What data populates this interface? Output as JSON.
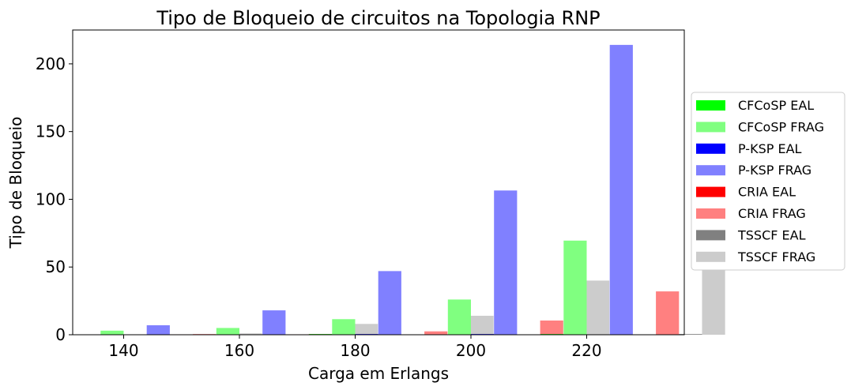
{
  "chart_data": {
    "type": "bar",
    "title": "Tipo de Bloqueio de circuitos na Topologia RNP",
    "xlabel": "Carga em Erlangs",
    "ylabel": "Tipo de Bloqueio",
    "categories": [
      "140",
      "160",
      "180",
      "200",
      "220"
    ],
    "yticks": [
      0,
      50,
      100,
      150,
      200
    ],
    "ylim": [
      0,
      225
    ],
    "legend_position": "right",
    "grid": false,
    "series": [
      {
        "name": "CFCoSP EAL",
        "color": "#00ff00",
        "values": [
          0,
          0,
          0.5,
          0,
          0.5
        ]
      },
      {
        "name": "CFCoSP FRAG",
        "color": "#80ff80",
        "values": [
          3,
          5,
          11.5,
          26,
          69.5
        ]
      },
      {
        "name": "P-KSP EAL",
        "color": "#0000ff",
        "values": [
          0,
          0,
          0.5,
          0.5,
          0
        ]
      },
      {
        "name": "P-KSP FRAG",
        "color": "#8080ff",
        "values": [
          7,
          18,
          47,
          106.5,
          214
        ]
      },
      {
        "name": "CRIA EAL",
        "color": "#ff0000",
        "values": [
          0.3,
          0.3,
          0,
          0,
          0
        ]
      },
      {
        "name": "CRIA FRAG",
        "color": "#ff8080",
        "values": [
          0.5,
          0.5,
          2.5,
          10.5,
          32
        ]
      },
      {
        "name": "TSSCF EAL",
        "color": "#808080",
        "values": [
          0,
          0,
          0,
          0,
          0.5
        ]
      },
      {
        "name": "TSSCF FRAG",
        "color": "#cccccc",
        "values": [
          1,
          8,
          14,
          40,
          84.5
        ]
      }
    ]
  }
}
